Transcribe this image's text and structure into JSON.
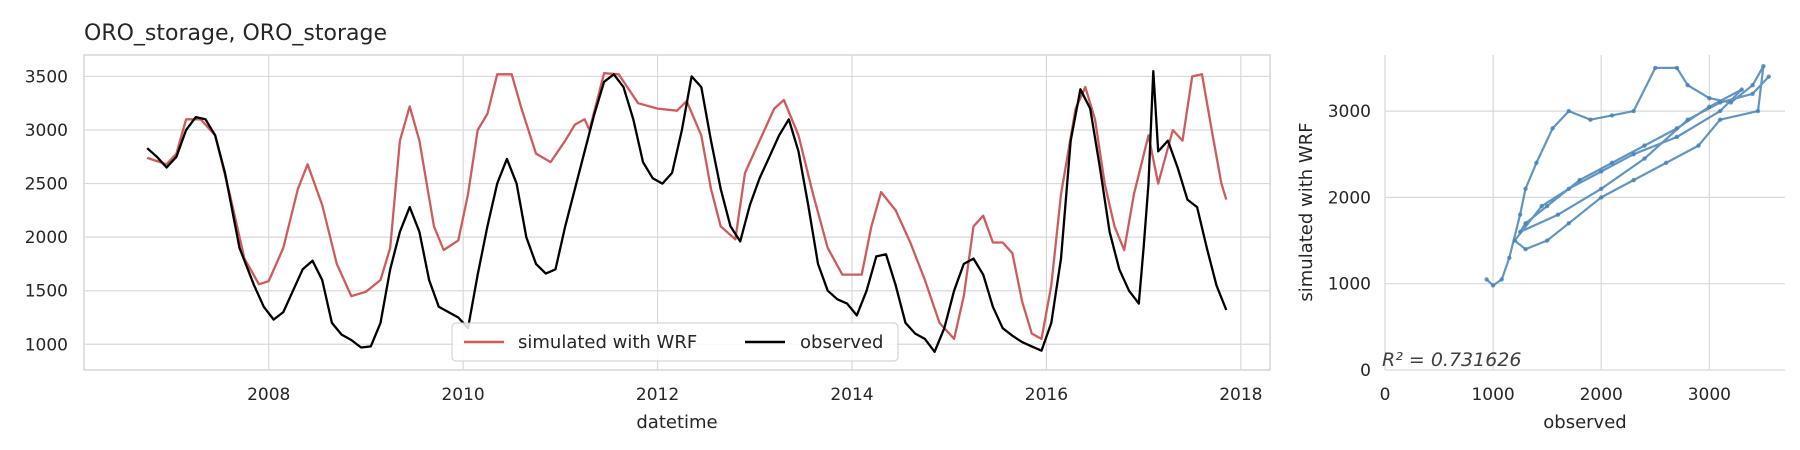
{
  "chart_data": [
    {
      "type": "line",
      "title": "ORO_storage, ORO_storage",
      "xlabel": "datetime",
      "ylabel": "",
      "xlim": [
        2006.1,
        2018.3
      ],
      "ylim": [
        760,
        3700
      ],
      "x_ticks": [
        "2008",
        "2010",
        "2012",
        "2014",
        "2016",
        "2018"
      ],
      "y_ticks": [
        "1000",
        "1500",
        "2000",
        "2500",
        "3000",
        "3500"
      ],
      "grid": true,
      "legend_position": "bottom-center",
      "x_units": "year (decimal)",
      "series": [
        {
          "name": "simulated with WRF",
          "color": "#cd5c5c",
          "points": [
            [
              2006.75,
              2740
            ],
            [
              2006.95,
              2680
            ],
            [
              2007.05,
              2780
            ],
            [
              2007.15,
              3100
            ],
            [
              2007.3,
              3100
            ],
            [
              2007.45,
              2950
            ],
            [
              2007.6,
              2400
            ],
            [
              2007.75,
              1800
            ],
            [
              2007.9,
              1560
            ],
            [
              2008.0,
              1590
            ],
            [
              2008.15,
              1900
            ],
            [
              2008.3,
              2450
            ],
            [
              2008.4,
              2680
            ],
            [
              2008.55,
              2300
            ],
            [
              2008.7,
              1750
            ],
            [
              2008.85,
              1450
            ],
            [
              2009.0,
              1490
            ],
            [
              2009.15,
              1600
            ],
            [
              2009.25,
              1900
            ],
            [
              2009.35,
              2900
            ],
            [
              2009.45,
              3220
            ],
            [
              2009.55,
              2900
            ],
            [
              2009.7,
              2100
            ],
            [
              2009.8,
              1880
            ],
            [
              2009.95,
              1970
            ],
            [
              2010.05,
              2400
            ],
            [
              2010.15,
              3000
            ],
            [
              2010.25,
              3150
            ],
            [
              2010.35,
              3520
            ],
            [
              2010.5,
              3520
            ],
            [
              2010.6,
              3200
            ],
            [
              2010.75,
              2780
            ],
            [
              2010.9,
              2700
            ],
            [
              2011.05,
              2900
            ],
            [
              2011.15,
              3050
            ],
            [
              2011.25,
              3100
            ],
            [
              2011.3,
              3000
            ],
            [
              2011.45,
              3530
            ],
            [
              2011.6,
              3520
            ],
            [
              2011.8,
              3250
            ],
            [
              2012.0,
              3200
            ],
            [
              2012.2,
              3180
            ],
            [
              2012.3,
              3270
            ],
            [
              2012.45,
              2950
            ],
            [
              2012.55,
              2450
            ],
            [
              2012.65,
              2100
            ],
            [
              2012.8,
              1980
            ],
            [
              2012.9,
              2600
            ],
            [
              2013.05,
              2900
            ],
            [
              2013.2,
              3200
            ],
            [
              2013.3,
              3280
            ],
            [
              2013.45,
              2950
            ],
            [
              2013.6,
              2400
            ],
            [
              2013.75,
              1900
            ],
            [
              2013.9,
              1650
            ],
            [
              2014.1,
              1650
            ],
            [
              2014.2,
              2100
            ],
            [
              2014.3,
              2420
            ],
            [
              2014.45,
              2250
            ],
            [
              2014.6,
              1950
            ],
            [
              2014.75,
              1600
            ],
            [
              2014.9,
              1200
            ],
            [
              2015.05,
              1050
            ],
            [
              2015.15,
              1450
            ],
            [
              2015.25,
              2100
            ],
            [
              2015.35,
              2200
            ],
            [
              2015.45,
              1950
            ],
            [
              2015.55,
              1950
            ],
            [
              2015.65,
              1850
            ],
            [
              2015.75,
              1400
            ],
            [
              2015.85,
              1100
            ],
            [
              2015.95,
              1050
            ],
            [
              2016.05,
              1550
            ],
            [
              2016.15,
              2400
            ],
            [
              2016.3,
              3200
            ],
            [
              2016.4,
              3400
            ],
            [
              2016.5,
              3100
            ],
            [
              2016.6,
              2500
            ],
            [
              2016.7,
              2100
            ],
            [
              2016.8,
              1880
            ],
            [
              2016.9,
              2400
            ],
            [
              2017.05,
              2950
            ],
            [
              2017.15,
              2500
            ],
            [
              2017.3,
              3000
            ],
            [
              2017.4,
              2900
            ],
            [
              2017.5,
              3500
            ],
            [
              2017.6,
              3520
            ],
            [
              2017.7,
              3000
            ],
            [
              2017.8,
              2500
            ],
            [
              2017.85,
              2350
            ]
          ]
        },
        {
          "name": "observed",
          "color": "#000000",
          "points": [
            [
              2006.75,
              2830
            ],
            [
              2006.85,
              2750
            ],
            [
              2006.95,
              2650
            ],
            [
              2007.05,
              2750
            ],
            [
              2007.15,
              3000
            ],
            [
              2007.25,
              3120
            ],
            [
              2007.35,
              3100
            ],
            [
              2007.45,
              2950
            ],
            [
              2007.55,
              2600
            ],
            [
              2007.7,
              1900
            ],
            [
              2007.85,
              1550
            ],
            [
              2007.95,
              1350
            ],
            [
              2008.05,
              1230
            ],
            [
              2008.15,
              1300
            ],
            [
              2008.25,
              1500
            ],
            [
              2008.35,
              1700
            ],
            [
              2008.45,
              1780
            ],
            [
              2008.55,
              1600
            ],
            [
              2008.65,
              1200
            ],
            [
              2008.75,
              1090
            ],
            [
              2008.85,
              1040
            ],
            [
              2008.95,
              970
            ],
            [
              2009.05,
              980
            ],
            [
              2009.15,
              1200
            ],
            [
              2009.25,
              1700
            ],
            [
              2009.35,
              2050
            ],
            [
              2009.45,
              2280
            ],
            [
              2009.55,
              2050
            ],
            [
              2009.65,
              1600
            ],
            [
              2009.75,
              1350
            ],
            [
              2009.85,
              1300
            ],
            [
              2009.95,
              1250
            ],
            [
              2010.05,
              1150
            ],
            [
              2010.15,
              1650
            ],
            [
              2010.25,
              2100
            ],
            [
              2010.35,
              2500
            ],
            [
              2010.45,
              2730
            ],
            [
              2010.55,
              2500
            ],
            [
              2010.65,
              2000
            ],
            [
              2010.75,
              1750
            ],
            [
              2010.85,
              1660
            ],
            [
              2010.95,
              1700
            ],
            [
              2011.05,
              2100
            ],
            [
              2011.15,
              2450
            ],
            [
              2011.25,
              2800
            ],
            [
              2011.35,
              3150
            ],
            [
              2011.45,
              3450
            ],
            [
              2011.55,
              3520
            ],
            [
              2011.65,
              3400
            ],
            [
              2011.75,
              3100
            ],
            [
              2011.85,
              2700
            ],
            [
              2011.95,
              2550
            ],
            [
              2012.05,
              2500
            ],
            [
              2012.15,
              2600
            ],
            [
              2012.25,
              3000
            ],
            [
              2012.35,
              3500
            ],
            [
              2012.45,
              3400
            ],
            [
              2012.55,
              2900
            ],
            [
              2012.65,
              2450
            ],
            [
              2012.75,
              2100
            ],
            [
              2012.85,
              1960
            ],
            [
              2012.95,
              2300
            ],
            [
              2013.05,
              2550
            ],
            [
              2013.15,
              2750
            ],
            [
              2013.25,
              2950
            ],
            [
              2013.35,
              3100
            ],
            [
              2013.45,
              2800
            ],
            [
              2013.55,
              2300
            ],
            [
              2013.65,
              1750
            ],
            [
              2013.75,
              1500
            ],
            [
              2013.85,
              1420
            ],
            [
              2013.95,
              1380
            ],
            [
              2014.05,
              1270
            ],
            [
              2014.15,
              1500
            ],
            [
              2014.25,
              1820
            ],
            [
              2014.35,
              1840
            ],
            [
              2014.45,
              1550
            ],
            [
              2014.55,
              1200
            ],
            [
              2014.65,
              1100
            ],
            [
              2014.75,
              1050
            ],
            [
              2014.85,
              930
            ],
            [
              2014.95,
              1150
            ],
            [
              2015.05,
              1500
            ],
            [
              2015.15,
              1750
            ],
            [
              2015.25,
              1800
            ],
            [
              2015.35,
              1650
            ],
            [
              2015.45,
              1350
            ],
            [
              2015.55,
              1150
            ],
            [
              2015.65,
              1080
            ],
            [
              2015.75,
              1020
            ],
            [
              2015.85,
              980
            ],
            [
              2015.95,
              940
            ],
            [
              2016.05,
              1200
            ],
            [
              2016.15,
              1800
            ],
            [
              2016.25,
              2900
            ],
            [
              2016.35,
              3380
            ],
            [
              2016.45,
              3200
            ],
            [
              2016.55,
              2650
            ],
            [
              2016.65,
              2050
            ],
            [
              2016.75,
              1700
            ],
            [
              2016.85,
              1500
            ],
            [
              2016.95,
              1380
            ],
            [
              2017.0,
              1900
            ],
            [
              2017.05,
              2500
            ],
            [
              2017.1,
              3550
            ],
            [
              2017.15,
              2800
            ],
            [
              2017.25,
              2900
            ],
            [
              2017.35,
              2650
            ],
            [
              2017.45,
              2350
            ],
            [
              2017.55,
              2280
            ],
            [
              2017.65,
              1900
            ],
            [
              2017.75,
              1550
            ],
            [
              2017.85,
              1320
            ]
          ]
        }
      ]
    },
    {
      "type": "scatter",
      "title": "",
      "xlabel": "observed",
      "ylabel": "simulated with WRF",
      "xlim": [
        0,
        3700
      ],
      "ylim": [
        0,
        3650
      ],
      "x_ticks": [
        "0",
        "1000",
        "2000",
        "3000"
      ],
      "y_ticks": [
        "0",
        "1000",
        "2000",
        "3000"
      ],
      "grid": true,
      "annotation": "R² = 0.731626",
      "series": [
        {
          "name": "",
          "color": "#4682b4",
          "points": [
            [
              940,
              1050
            ],
            [
              1000,
              980
            ],
            [
              1080,
              1050
            ],
            [
              1150,
              1300
            ],
            [
              1250,
              1800
            ],
            [
              1300,
              2100
            ],
            [
              1400,
              2400
            ],
            [
              1550,
              2800
            ],
            [
              1700,
              3000
            ],
            [
              1900,
              2900
            ],
            [
              2100,
              2950
            ],
            [
              2300,
              3000
            ],
            [
              2500,
              3500
            ],
            [
              2700,
              3500
            ],
            [
              2800,
              3300
            ],
            [
              3000,
              3150
            ],
            [
              3200,
              3100
            ],
            [
              3400,
              3300
            ],
            [
              3500,
              3520
            ],
            [
              3450,
              3000
            ],
            [
              3100,
              2900
            ],
            [
              2900,
              2600
            ],
            [
              2600,
              2400
            ],
            [
              2300,
              2200
            ],
            [
              2000,
              2000
            ],
            [
              1700,
              1700
            ],
            [
              1500,
              1500
            ],
            [
              1300,
              1400
            ],
            [
              1200,
              1500
            ],
            [
              1450,
              1900
            ],
            [
              1700,
              2100
            ],
            [
              2000,
              2300
            ],
            [
              2300,
              2500
            ],
            [
              2700,
              2700
            ],
            [
              3100,
              3000
            ],
            [
              3300,
              3250
            ],
            [
              3000,
              3050
            ],
            [
              2700,
              2800
            ],
            [
              2400,
              2600
            ],
            [
              2100,
              2400
            ],
            [
              1800,
              2200
            ],
            [
              1500,
              1900
            ],
            [
              1300,
              1700
            ],
            [
              1250,
              1600
            ],
            [
              1600,
              1800
            ],
            [
              2000,
              2100
            ],
            [
              2400,
              2450
            ],
            [
              2800,
              2900
            ],
            [
              3100,
              3100
            ],
            [
              3400,
              3200
            ],
            [
              3550,
              3400
            ]
          ]
        }
      ]
    }
  ]
}
